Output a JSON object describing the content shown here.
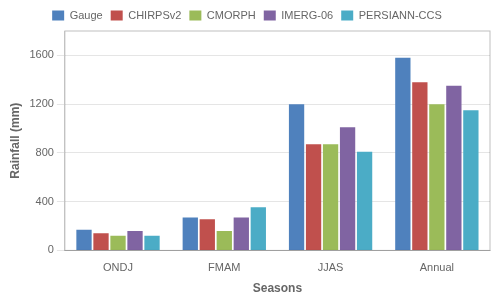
{
  "chart_data": {
    "type": "bar",
    "xlabel": "Seasons",
    "ylabel": "Rainfall (mm)",
    "categories": [
      "ONDJ",
      "FMAM",
      "JJAS",
      "Annual"
    ],
    "series": [
      {
        "name": "Gauge",
        "color": "#4F81BD",
        "values": [
          170,
          270,
          1200,
          1580
        ]
      },
      {
        "name": "CHIRPSv2",
        "color": "#C0504D",
        "values": [
          140,
          255,
          870,
          1380
        ]
      },
      {
        "name": "CMORPH",
        "color": "#9BBB59",
        "values": [
          120,
          160,
          870,
          1200
        ]
      },
      {
        "name": "IMERG-06",
        "color": "#8064A2",
        "values": [
          160,
          270,
          1010,
          1350
        ]
      },
      {
        "name": "PERSIANN-CCS",
        "color": "#4BACC6",
        "values": [
          120,
          355,
          810,
          1150
        ]
      }
    ],
    "ylim": [
      0,
      1800
    ],
    "yticks": [
      0,
      400,
      800,
      1200,
      1600
    ],
    "grid": true,
    "legend": "top"
  }
}
